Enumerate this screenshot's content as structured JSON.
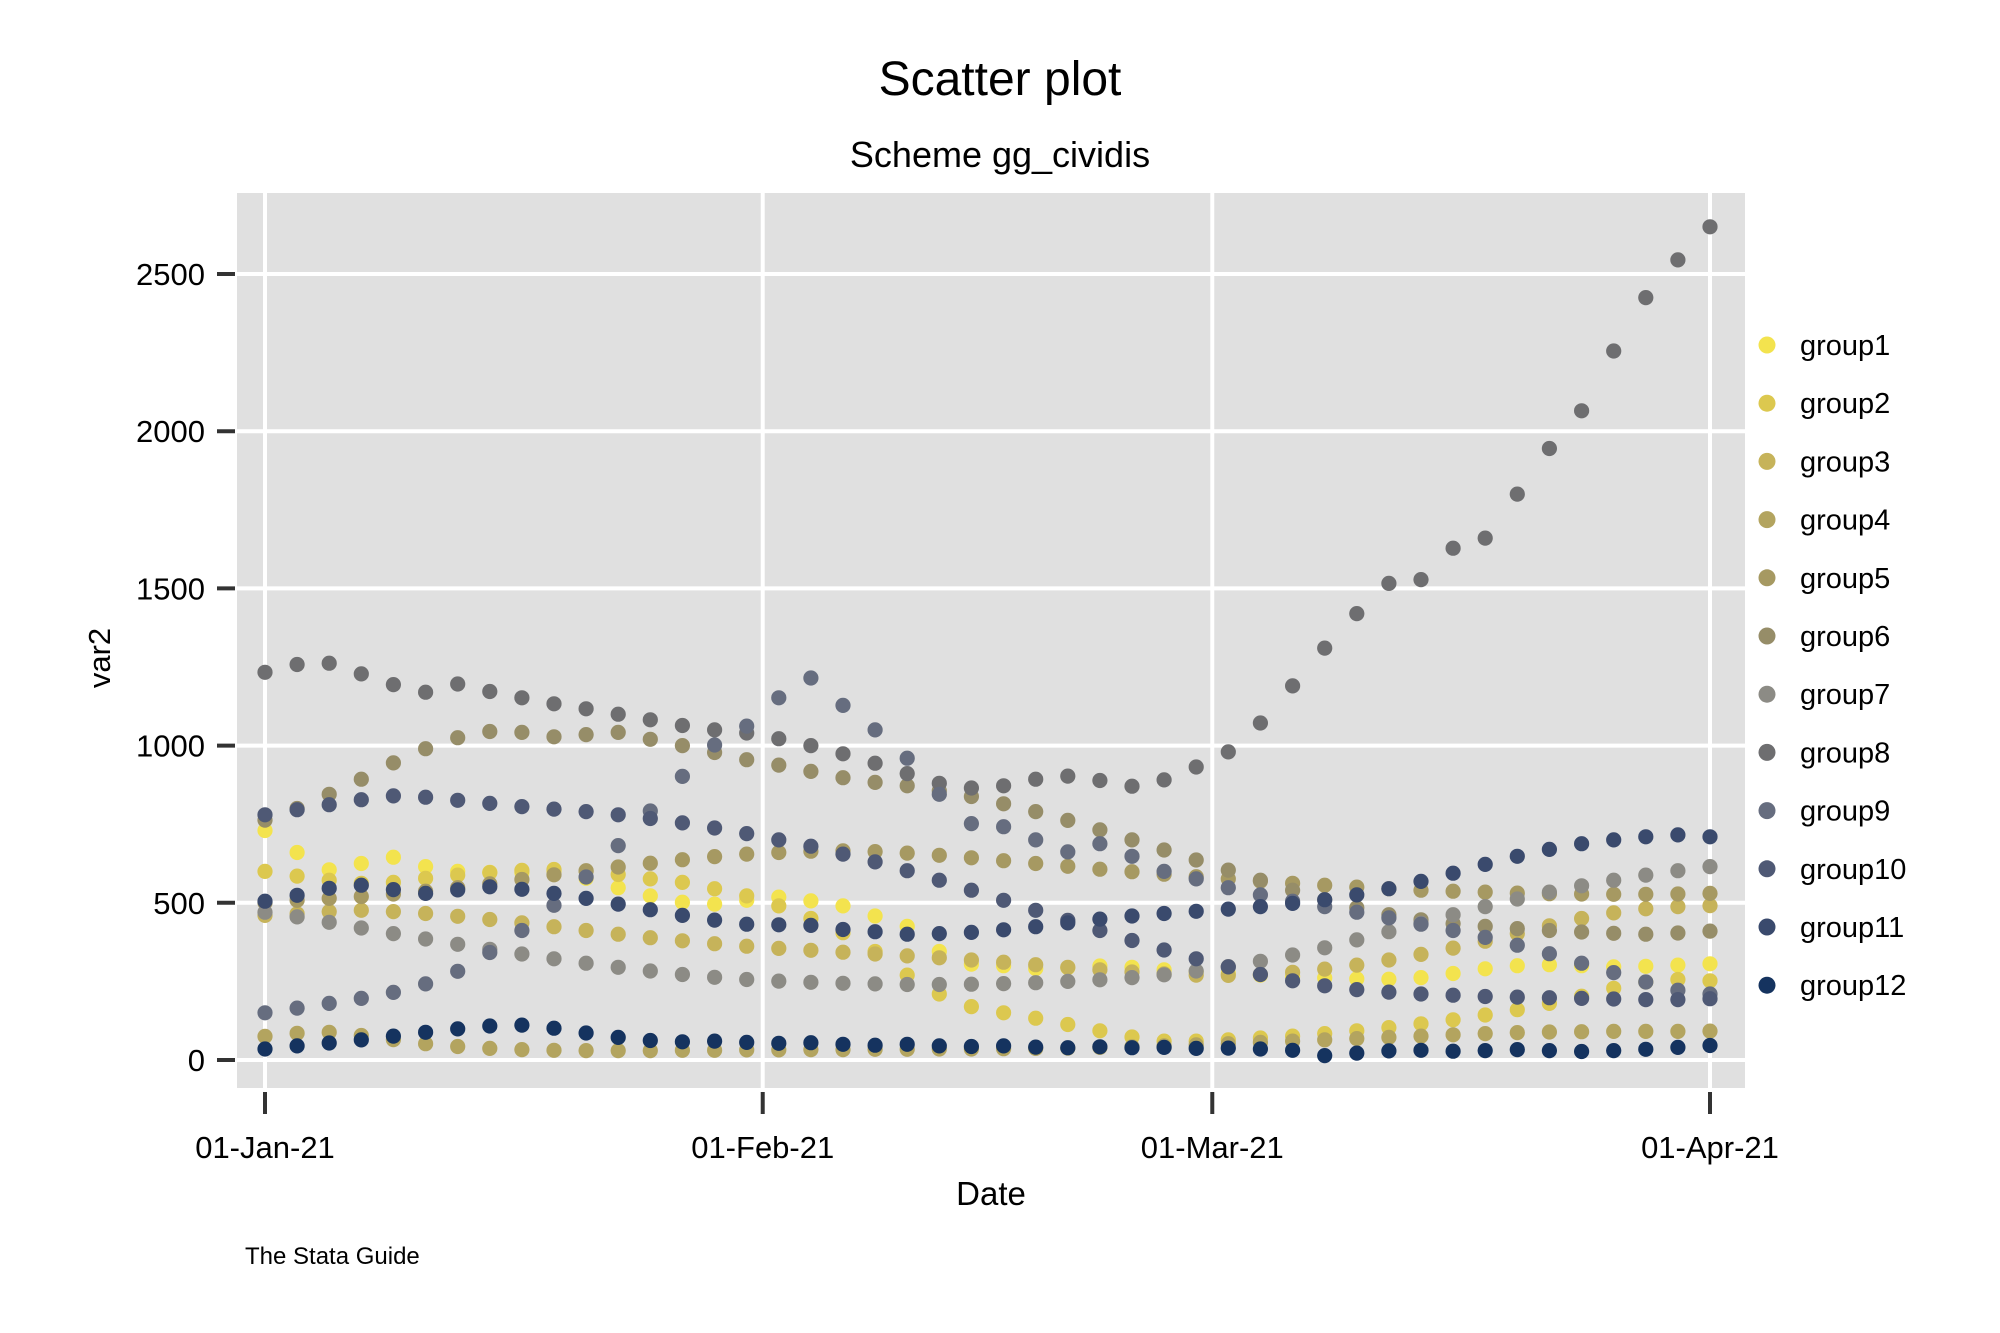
{
  "title": "Scatter plot",
  "subtitle": "Scheme gg_cividis",
  "caption": "The Stata Guide",
  "chart_data": {
    "type": "scatter",
    "title": "Scatter plot",
    "subtitle": "Scheme gg_cividis",
    "xlabel": "Date",
    "ylabel": "var2",
    "x_tick_labels": [
      "01-Jan-21",
      "01-Feb-21",
      "01-Mar-21",
      "01-Apr-21"
    ],
    "x_tick_days": [
      0,
      31,
      59,
      90
    ],
    "y_ticks": [
      0,
      500,
      1000,
      1500,
      2000,
      2500
    ],
    "x_day_range": [
      0,
      90
    ],
    "ylim": [
      -80,
      2780
    ],
    "sample_step_days": 2,
    "grid": true,
    "grid_color": "#ffffff",
    "plot_bg": "#e0e0e0",
    "tick_color": "#333333",
    "legend_position": "right",
    "marker_radius": 7.6,
    "series": [
      {
        "name": "group1",
        "color": "#F3E34E",
        "values": [
          730,
          660,
          605,
          625,
          645,
          615,
          600,
          597,
          596,
          600,
          578,
          548,
          522,
          502,
          496,
          508,
          518,
          506,
          490,
          458,
          425,
          345,
          305,
          300,
          291,
          294,
          299,
          295,
          287,
          280,
          276,
          270,
          266,
          261,
          258,
          257,
          262,
          275,
          290,
          300,
          303,
          300,
          296,
          298,
          302,
          306
        ]
      },
      {
        "name": "group2",
        "color": "#DCC84F",
        "values": [
          600,
          585,
          572,
          562,
          565,
          578,
          588,
          596,
          603,
          606,
          601,
          590,
          576,
          565,
          545,
          522,
          490,
          450,
          405,
          345,
          270,
          210,
          170,
          150,
          133,
          113,
          93,
          73,
          60,
          60,
          64,
          70,
          76,
          84,
          93,
          103,
          115,
          128,
          143,
          160,
          180,
          203,
          228,
          248,
          256,
          252
        ]
      },
      {
        "name": "group3",
        "color": "#C6B35A",
        "values": [
          460,
          465,
          472,
          476,
          472,
          466,
          457,
          447,
          436,
          424,
          412,
          400,
          389,
          379,
          370,
          362,
          355,
          349,
          343,
          337,
          331,
          325,
          318,
          311,
          303,
          295,
          287,
          280,
          274,
          270,
          269,
          272,
          279,
          289,
          302,
          318,
          336,
          356,
          378,
          402,
          427,
          450,
          468,
          481,
          488,
          491
        ]
      },
      {
        "name": "group4",
        "color": "#B3A45F",
        "values": [
          75,
          85,
          88,
          78,
          65,
          52,
          43,
          37,
          33,
          31,
          30,
          30,
          30,
          31,
          31,
          32,
          32,
          33,
          33,
          34,
          34,
          35,
          35,
          36,
          37,
          38,
          40,
          42,
          45,
          48,
          52,
          56,
          60,
          64,
          68,
          72,
          76,
          80,
          84,
          87,
          89,
          90,
          91,
          91,
          91,
          92
        ]
      },
      {
        "name": "group5",
        "color": "#A69962",
        "values": [
          500,
          508,
          514,
          520,
          528,
          537,
          548,
          560,
          574,
          589,
          602,
          614,
          626,
          637,
          647,
          655,
          660,
          664,
          665,
          663,
          658,
          651,
          643,
          634,
          625,
          616,
          607,
          599,
          591,
          583,
          576,
          569,
          562,
          556,
          550,
          545,
          540,
          537,
          534,
          531,
          529,
          528,
          527,
          527,
          528,
          530
        ]
      },
      {
        "name": "group6",
        "color": "#968D68",
        "values": [
          763,
          800,
          845,
          893,
          945,
          990,
          1025,
          1045,
          1042,
          1028,
          1035,
          1042,
          1020,
          1000,
          978,
          955,
          938,
          918,
          898,
          883,
          872,
          856,
          838,
          815,
          790,
          762,
          732,
          700,
          668,
          636,
          604,
          572,
          540,
          510,
          484,
          462,
          446,
          434,
          425,
          418,
          412,
          407,
          403,
          400,
          404,
          410
        ]
      },
      {
        "name": "group7",
        "color": "#8C8B85",
        "values": [
          470,
          455,
          438,
          420,
          402,
          385,
          368,
          352,
          337,
          322,
          308,
          295,
          283,
          272,
          263,
          256,
          251,
          247,
          244,
          242,
          240,
          240,
          241,
          243,
          246,
          250,
          255,
          262,
          271,
          283,
          297,
          314,
          334,
          357,
          382,
          408,
          435,
          462,
          488,
          512,
          534,
          554,
          572,
          588,
          602,
          615
        ]
      },
      {
        "name": "group8",
        "color": "#6E6E70",
        "values": [
          1233,
          1258,
          1262,
          1228,
          1194,
          1170,
          1196,
          1172,
          1152,
          1133,
          1117,
          1100,
          1082,
          1064,
          1050,
          1040,
          1022,
          1000,
          974,
          944,
          911,
          880,
          865,
          872,
          893,
          903,
          889,
          871,
          891,
          932,
          980,
          1072,
          1190,
          1310,
          1420,
          1516,
          1528,
          1628,
          1660,
          1800,
          1945,
          2065,
          2255,
          2425,
          2545,
          2650
        ]
      },
      {
        "name": "group9",
        "color": "#666D7F",
        "values": [
          150,
          165,
          180,
          196,
          215,
          242,
          282,
          342,
          412,
          492,
          582,
          682,
          792,
          902,
          1002,
          1062,
          1152,
          1215,
          1128,
          1050,
          960,
          845,
          752,
          742,
          700,
          662,
          688,
          648,
          600,
          576,
          548,
          525,
          505,
          488,
          470,
          452,
          432,
          412,
          390,
          365,
          338,
          308,
          278,
          248,
          222,
          210
        ]
      },
      {
        "name": "group10",
        "color": "#4F5975",
        "values": [
          780,
          796,
          812,
          828,
          840,
          836,
          826,
          816,
          806,
          798,
          790,
          780,
          768,
          754,
          738,
          720,
          700,
          680,
          655,
          630,
          602,
          572,
          540,
          508,
          476,
          444,
          412,
          380,
          350,
          322,
          296,
          272,
          252,
          236,
          224,
          216,
          210,
          206,
          202,
          200,
          198,
          196,
          194,
          192,
          192,
          195
        ]
      },
      {
        "name": "group11",
        "color": "#3A4A6D",
        "values": [
          505,
          524,
          546,
          556,
          542,
          530,
          541,
          551,
          543,
          530,
          514,
          496,
          478,
          460,
          445,
          432,
          430,
          428,
          415,
          408,
          400,
          402,
          406,
          414,
          424,
          436,
          448,
          458,
          466,
          473,
          480,
          488,
          498,
          510,
          525,
          545,
          568,
          594,
          622,
          648,
          670,
          688,
          700,
          710,
          716,
          710
        ]
      },
      {
        "name": "group12",
        "color": "#15335F",
        "values": [
          35,
          45,
          54,
          64,
          76,
          88,
          99,
          108,
          111,
          101,
          86,
          72,
          62,
          58,
          60,
          56,
          53,
          55,
          50,
          47,
          50,
          45,
          43,
          45,
          41,
          39,
          42,
          39,
          40,
          37,
          38,
          35,
          31,
          14,
          22,
          29,
          31,
          28,
          30,
          33,
          30,
          27,
          30,
          34,
          40,
          46
        ]
      }
    ]
  }
}
